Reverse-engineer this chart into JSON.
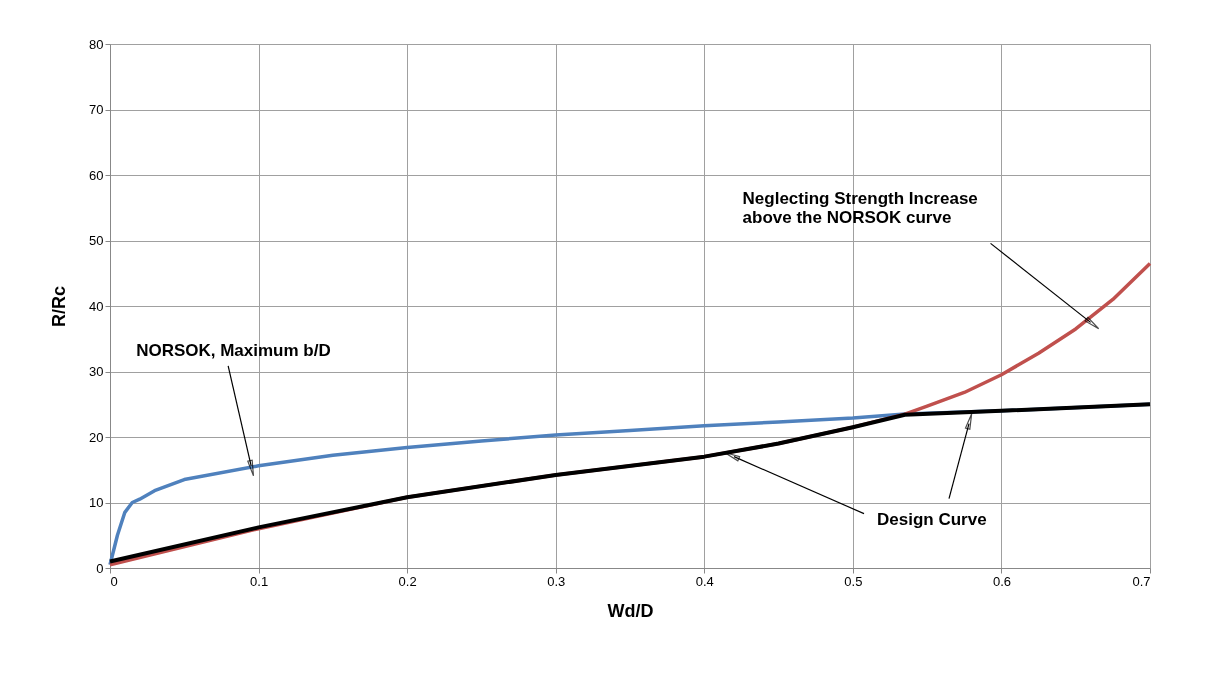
{
  "chart_data": {
    "type": "line",
    "xlabel": "Wd/D",
    "ylabel": "R/Rc",
    "xlim": [
      0,
      0.7
    ],
    "ylim": [
      0,
      80
    ],
    "xticks": [
      0,
      0.1,
      0.2,
      0.3,
      0.4,
      0.5,
      0.6,
      0.7
    ],
    "yticks": [
      0,
      10,
      20,
      30,
      40,
      50,
      60,
      70,
      80
    ],
    "grid": true,
    "marker": "none",
    "line_style": "solid",
    "series": [
      {
        "color": "#4f81bd",
        "x": [
          0,
          0.005,
          0.01,
          0.015,
          0.02,
          0.03,
          0.05,
          0.1,
          0.15,
          0.2,
          0.25,
          0.3,
          0.35,
          0.4,
          0.45,
          0.5,
          0.535,
          0.6,
          0.7
        ],
        "values": [
          0.5,
          5,
          8.5,
          10,
          10.5,
          11.8,
          13.5,
          15.6,
          17.2,
          18.4,
          19.4,
          20.3,
          21,
          21.7,
          22.3,
          22.9,
          23.5,
          24,
          25
        ]
      },
      {
        "color": "#c0504d",
        "x": [
          0,
          0.1,
          0.2,
          0.3,
          0.4,
          0.45,
          0.5,
          0.535,
          0.55,
          0.575,
          0.6,
          0.625,
          0.65,
          0.675,
          0.7
        ],
        "values": [
          0.5,
          6,
          10.8,
          14.2,
          17,
          19,
          21.5,
          23.5,
          24.7,
          26.8,
          29.5,
          32.8,
          36.5,
          41,
          46.5
        ]
      },
      {
        "color": "#000000",
        "x": [
          0,
          0.1,
          0.2,
          0.3,
          0.4,
          0.45,
          0.5,
          0.535,
          0.6,
          0.7
        ],
        "values": [
          1,
          6.2,
          10.8,
          14.2,
          17,
          19,
          21.5,
          23.4,
          24,
          25
        ]
      }
    ],
    "annotations": [
      {
        "text": "NORSOK, Maximum b/D",
        "x": 0.095,
        "y": 15.6
      },
      {
        "text": "Neglecting Strength Increase\nabove the NORSOK curve",
        "x": 0.66,
        "y": 37.5
      },
      {
        "text": "Design Curve",
        "x": 0.42,
        "y": 17
      }
    ]
  }
}
